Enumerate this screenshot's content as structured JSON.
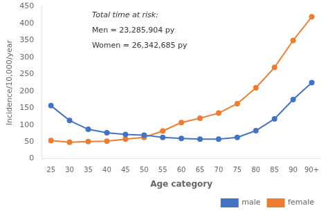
{
  "chart_data": {
    "type": "line",
    "categories": [
      "25",
      "30",
      "35",
      "40",
      "45",
      "50",
      "55",
      "60",
      "65",
      "70",
      "75",
      "80",
      "85",
      "90",
      "90+"
    ],
    "series": [
      {
        "name": "male",
        "color": "#4472C4",
        "values": [
          157,
          113,
          87,
          77,
          72,
          70,
          63,
          60,
          58,
          58,
          63,
          83,
          118,
          175,
          225
        ]
      },
      {
        "name": "female",
        "color": "#ED7D31",
        "values": [
          54,
          49,
          51,
          52,
          58,
          63,
          82,
          107,
          120,
          135,
          163,
          210,
          270,
          350,
          420
        ]
      }
    ],
    "xlabel": "Age category",
    "ylabel": "Incidence/10,000/year",
    "ylim": [
      0,
      450
    ],
    "yticks": [
      0,
      50,
      100,
      150,
      200,
      250,
      300,
      350,
      400,
      450
    ],
    "annotations": [
      "Total time at risk:",
      "Men = 23,285,904 py",
      "Women = 26,342,685 py"
    ],
    "marker": "circle",
    "legend": "lower right",
    "grid": false
  }
}
